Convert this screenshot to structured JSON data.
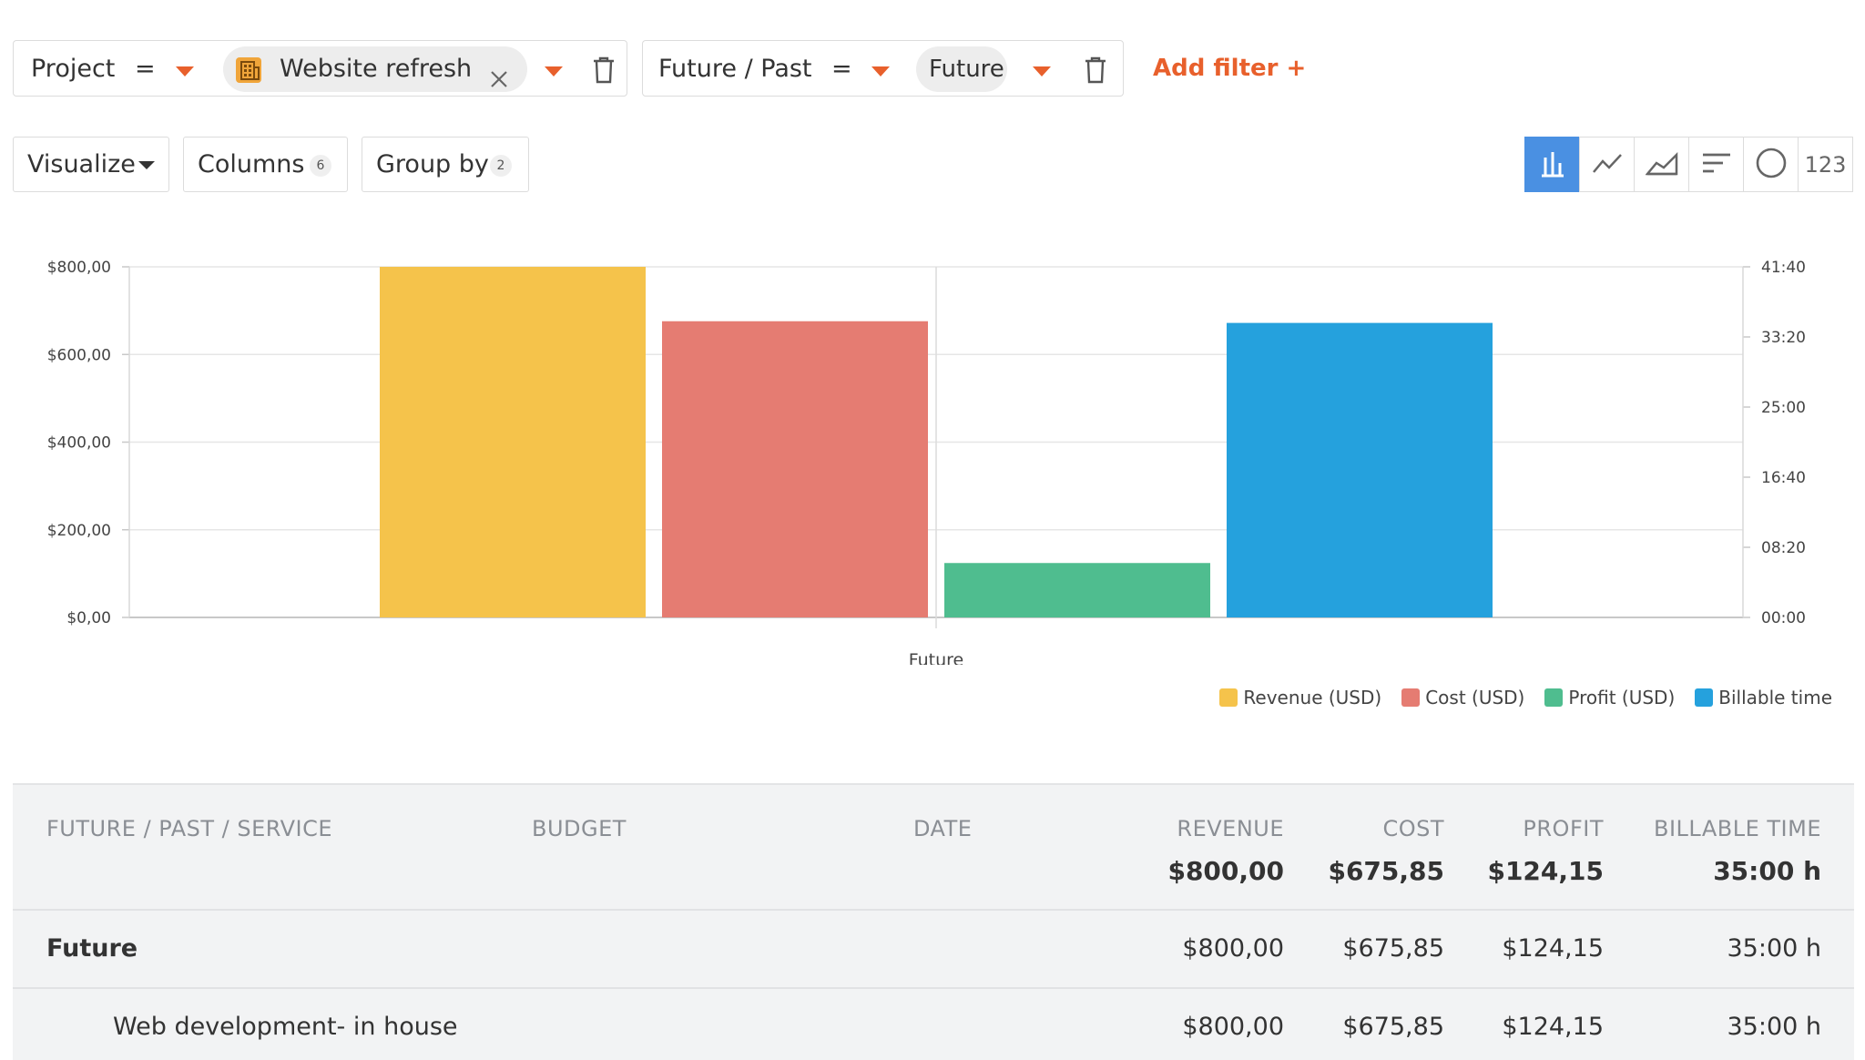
{
  "filters": [
    {
      "field": "Project",
      "operator": "=",
      "value": "Website refresh",
      "value_icon": "project-building-icon"
    },
    {
      "field": "Future / Past",
      "operator": "=",
      "value": "Future"
    }
  ],
  "add_filter_label": "Add filter +",
  "toolbar": {
    "visualize_label": "Visualize",
    "columns_label": "Columns",
    "columns_count": "6",
    "group_by_label": "Group by",
    "group_by_count": "2"
  },
  "view_types": [
    {
      "icon": "bar-chart-icon",
      "active": true
    },
    {
      "icon": "line-chart-icon",
      "active": false
    },
    {
      "icon": "area-chart-icon",
      "active": false
    },
    {
      "icon": "horizontal-bar-icon",
      "active": false
    },
    {
      "icon": "pie-chart-icon",
      "active": false
    },
    {
      "icon": "number-view-icon",
      "label": "123",
      "active": false
    }
  ],
  "chart_data": {
    "type": "bar",
    "categories": [
      "Future"
    ],
    "series": [
      {
        "name": "Revenue (USD)",
        "values": [
          800.0
        ],
        "axis": "left",
        "color": "#f5c34b"
      },
      {
        "name": "Cost (USD)",
        "values": [
          675.85
        ],
        "axis": "left",
        "color": "#e57c72"
      },
      {
        "name": "Profit (USD)",
        "values": [
          124.15
        ],
        "axis": "left",
        "color": "#4fbd8f"
      },
      {
        "name": "Billable time",
        "values": [
          35.0
        ],
        "axis": "right",
        "color": "#25a1dd"
      }
    ],
    "y_left": {
      "lim": [
        0,
        800
      ],
      "ticks": [
        0,
        200,
        400,
        600,
        800
      ],
      "tick_labels": [
        "$0,00",
        "$200,00",
        "$400,00",
        "$600,00",
        "$800,00"
      ]
    },
    "y_right": {
      "lim": [
        0,
        41.6667
      ],
      "ticks": [
        0,
        8.3333,
        16.6667,
        25,
        33.3333,
        41.6667
      ],
      "tick_labels": [
        "00:00",
        "08:20",
        "16:40",
        "25:00",
        "33:20",
        "41:40"
      ]
    },
    "grid": true,
    "legend_position": "bottom-right"
  },
  "table": {
    "headers": [
      "FUTURE / PAST / SERVICE",
      "BUDGET",
      "DATE",
      "REVENUE",
      "COST",
      "PROFIT",
      "BILLABLE TIME"
    ],
    "totals": {
      "revenue": "$800,00",
      "cost": "$675,85",
      "profit": "$124,15",
      "billable_time": "35:00 h"
    },
    "rows": [
      {
        "label": "Future",
        "revenue": "$800,00",
        "cost": "$675,85",
        "profit": "$124,15",
        "billable_time": "35:00 h"
      },
      {
        "label": "Web development- in house",
        "revenue": "$800,00",
        "cost": "$675,85",
        "profit": "$124,15",
        "billable_time": "35:00 h"
      }
    ]
  }
}
